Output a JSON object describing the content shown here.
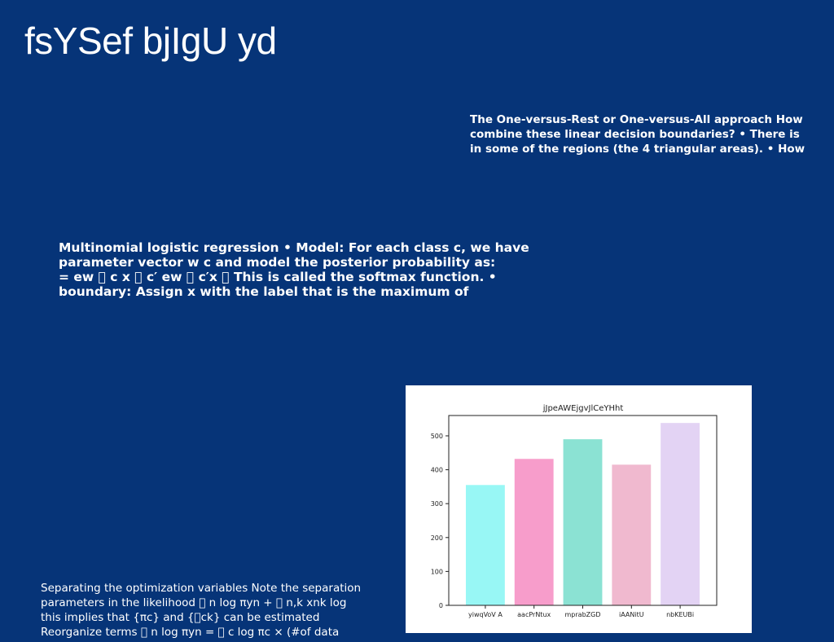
{
  "slide": {
    "title": "fsYSef bjIgU yd",
    "right_block": [
      "The One-versus-Rest or One-versus-All approach How",
      "combine these linear decision boundaries? • There is",
      "in some of the regions (the 4 triangular areas). • How"
    ],
    "mid_block": [
      "Multinomial logistic regression • Model: For each class c, we have",
      "parameter vector w c and model the posterior probability as:",
      "= ew ￿ c x ￿ c′ ew ￿ c′x ￿ This is called the softmax function. •",
      "boundary: Assign x with the label that is the maximum of"
    ],
    "bottom_block": [
      "Separating the optimization variables Note the separation",
      "parameters in the likelihood ￿ n log πyn + ￿ n,k xnk log",
      "this implies that {πc} and {￿ck} can be estimated",
      "Reorganize terms ￿ n log πyn = ￿ c log πc × (#of data"
    ]
  },
  "chart_data": {
    "type": "bar",
    "title": "jJpeAWEjgvJlCeYHht",
    "categories": [
      "yiwqVoV A",
      "aacPrNtux",
      "mprabZGD",
      "iAANitU",
      "nbKEUBi"
    ],
    "values": [
      355,
      432,
      490,
      415,
      538
    ],
    "colors": [
      "#98f7f5",
      "#f79dcb",
      "#8be2d3",
      "#f0b9cf",
      "#e3d3f4"
    ],
    "ylim": [
      0,
      560
    ],
    "yticks": [
      0,
      100,
      200,
      300,
      400,
      500
    ],
    "xlabel": "",
    "ylabel": "",
    "grid": false
  }
}
